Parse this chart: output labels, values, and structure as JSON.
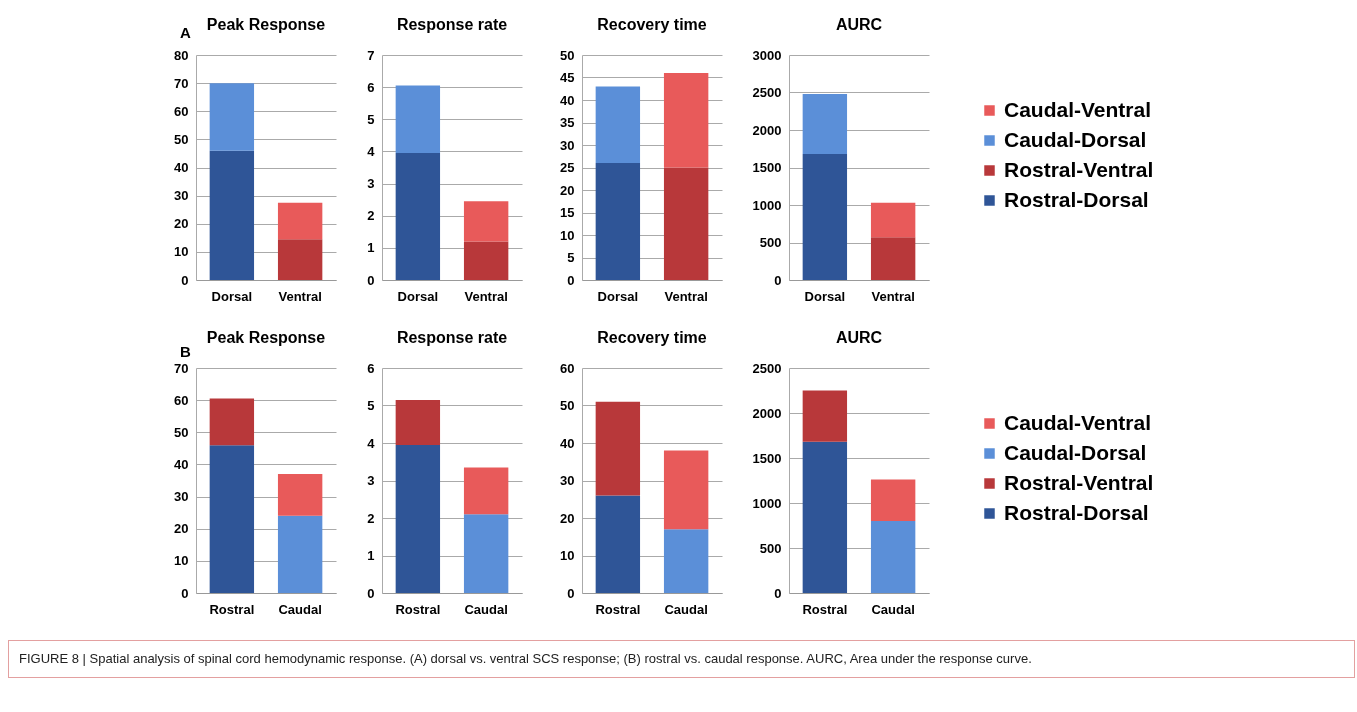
{
  "chart_data": [
    {
      "type": "bar",
      "title": "Peak Response",
      "annotations": [
        "A"
      ],
      "categories": [
        "Dorsal",
        "Ventral"
      ],
      "stacked": true,
      "grid": "y",
      "ylim": [
        0,
        80
      ],
      "yticks": [
        0,
        10,
        20,
        30,
        40,
        50,
        60,
        70,
        80
      ],
      "series": [
        {
          "color": "#2f5597",
          "values": [
            46,
            null
          ]
        },
        {
          "color": "#b8383a",
          "values": [
            null,
            14.5
          ]
        },
        {
          "color": "#5b8fd8",
          "values": [
            24,
            null
          ]
        },
        {
          "color": "#e85a5a",
          "values": [
            null,
            13
          ]
        }
      ]
    },
    {
      "type": "bar",
      "title": "Response rate",
      "categories": [
        "Dorsal",
        "Ventral"
      ],
      "stacked": true,
      "grid": "y",
      "ylim": [
        0,
        7
      ],
      "yticks": [
        0,
        1,
        2,
        3,
        4,
        5,
        6,
        7
      ],
      "series": [
        {
          "color": "#2f5597",
          "values": [
            3.95,
            null
          ]
        },
        {
          "color": "#b8383a",
          "values": [
            null,
            1.2
          ]
        },
        {
          "color": "#5b8fd8",
          "values": [
            2.1,
            null
          ]
        },
        {
          "color": "#e85a5a",
          "values": [
            null,
            1.25
          ]
        }
      ]
    },
    {
      "type": "bar",
      "title": "Recovery time",
      "categories": [
        "Dorsal",
        "Ventral"
      ],
      "stacked": true,
      "grid": "y",
      "ylim": [
        0,
        50
      ],
      "yticks": [
        0,
        5,
        10,
        15,
        20,
        25,
        30,
        35,
        40,
        45,
        50
      ],
      "series": [
        {
          "color": "#2f5597",
          "values": [
            26,
            null
          ]
        },
        {
          "color": "#b8383a",
          "values": [
            null,
            25
          ]
        },
        {
          "color": "#5b8fd8",
          "values": [
            17,
            null
          ]
        },
        {
          "color": "#e85a5a",
          "values": [
            null,
            21
          ]
        }
      ]
    },
    {
      "type": "bar",
      "title": "AURC",
      "categories": [
        "Dorsal",
        "Ventral"
      ],
      "stacked": true,
      "grid": "y",
      "legend": "right",
      "ylim": [
        0,
        3000
      ],
      "yticks": [
        0,
        500,
        1000,
        1500,
        2000,
        2500,
        3000
      ],
      "series": [
        {
          "name": "Rostral-Dorsal",
          "color": "#2f5597",
          "values": [
            1680,
            null
          ]
        },
        {
          "name": "Rostral-Ventral",
          "color": "#b8383a",
          "values": [
            null,
            570
          ]
        },
        {
          "name": "Caudal-Dorsal",
          "color": "#5b8fd8",
          "values": [
            800,
            null
          ]
        },
        {
          "name": "Caudal-Ventral",
          "color": "#e85a5a",
          "values": [
            null,
            460
          ]
        }
      ]
    },
    {
      "type": "bar",
      "title": "Peak Response",
      "annotations": [
        "B"
      ],
      "categories": [
        "Rostral",
        "Caudal"
      ],
      "stacked": true,
      "grid": "y",
      "ylim": [
        0,
        70
      ],
      "yticks": [
        0,
        10,
        20,
        30,
        40,
        50,
        60,
        70
      ],
      "series": [
        {
          "color": "#2f5597",
          "values": [
            46,
            null
          ]
        },
        {
          "color": "#b8383a",
          "values": [
            14.5,
            null
          ]
        },
        {
          "color": "#5b8fd8",
          "values": [
            null,
            24
          ]
        },
        {
          "color": "#e85a5a",
          "values": [
            null,
            13
          ]
        }
      ]
    },
    {
      "type": "bar",
      "title": "Response rate",
      "categories": [
        "Rostral",
        "Caudal"
      ],
      "stacked": true,
      "grid": "y",
      "ylim": [
        0,
        6
      ],
      "yticks": [
        0,
        1,
        2,
        3,
        4,
        5,
        6
      ],
      "series": [
        {
          "color": "#2f5597",
          "values": [
            3.95,
            null
          ]
        },
        {
          "color": "#b8383a",
          "values": [
            1.2,
            null
          ]
        },
        {
          "color": "#5b8fd8",
          "values": [
            null,
            2.1
          ]
        },
        {
          "color": "#e85a5a",
          "values": [
            null,
            1.25
          ]
        }
      ]
    },
    {
      "type": "bar",
      "title": "Recovery time",
      "categories": [
        "Rostral",
        "Caudal"
      ],
      "stacked": true,
      "grid": "y",
      "ylim": [
        0,
        60
      ],
      "yticks": [
        0,
        10,
        20,
        30,
        40,
        50,
        60
      ],
      "series": [
        {
          "color": "#2f5597",
          "values": [
            26,
            null
          ]
        },
        {
          "color": "#b8383a",
          "values": [
            25,
            null
          ]
        },
        {
          "color": "#5b8fd8",
          "values": [
            null,
            17
          ]
        },
        {
          "color": "#e85a5a",
          "values": [
            null,
            21
          ]
        }
      ]
    },
    {
      "type": "bar",
      "title": "AURC",
      "annotations": [
        "FIGURE 8 | Spatial analysis of spinal cord hemodynamic response. (A) dorsal vs. ventral SCS response; (B) rostral vs. caudal response. AURC, Area under the response curve."
      ],
      "categories": [
        "Rostral",
        "Caudal"
      ],
      "stacked": true,
      "grid": "y",
      "legend": "right",
      "ylim": [
        0,
        2500
      ],
      "yticks": [
        0,
        500,
        1000,
        1500,
        2000,
        2500
      ],
      "series": [
        {
          "name": "Rostral-Dorsal",
          "color": "#2f5597",
          "values": [
            1680,
            null
          ]
        },
        {
          "name": "Rostral-Ventral",
          "color": "#b8383a",
          "values": [
            570,
            null
          ]
        },
        {
          "name": "Caudal-Dorsal",
          "color": "#5b8fd8",
          "values": [
            null,
            800
          ]
        },
        {
          "name": "Caudal-Ventral",
          "color": "#e85a5a",
          "values": [
            null,
            460
          ]
        }
      ]
    }
  ]
}
